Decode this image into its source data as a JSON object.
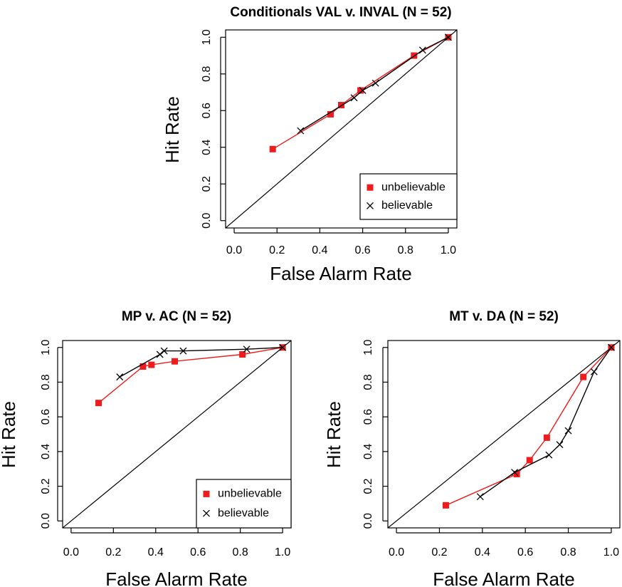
{
  "figure": {
    "background": "#ffffff"
  },
  "colors": {
    "unbelievable": "#ee1c1c",
    "believable": "#000000",
    "diagonal": "#000000",
    "frame": "#000000"
  },
  "chart_data": [
    {
      "type": "line",
      "title": "Conditionals VAL v. INVAL (N = 52)",
      "xlabel": "False Alarm Rate",
      "ylabel": "Hit Rate",
      "xlim": [
        0,
        1
      ],
      "ylim": [
        0,
        1
      ],
      "xticks": [
        "0.0",
        "0.2",
        "0.4",
        "0.6",
        "0.8",
        "1.0"
      ],
      "yticks": [
        "0.0",
        "0.2",
        "0.4",
        "0.6",
        "0.8",
        "1.0"
      ],
      "reference_line": "diagonal",
      "legend": {
        "placement": "bottom-right",
        "entries": [
          "unbelievable",
          "believable"
        ]
      },
      "series": [
        {
          "name": "unbelievable",
          "marker": "square",
          "x": [
            0.18,
            0.45,
            0.5,
            0.59,
            0.84,
            1.0
          ],
          "y": [
            0.39,
            0.58,
            0.63,
            0.71,
            0.9,
            1.0
          ]
        },
        {
          "name": "believable",
          "marker": "x",
          "x": [
            0.31,
            0.56,
            0.6,
            0.66,
            0.88,
            1.0
          ],
          "y": [
            0.49,
            0.67,
            0.71,
            0.75,
            0.93,
            1.0
          ]
        }
      ]
    },
    {
      "type": "line",
      "title": "MP v. AC (N = 52)",
      "xlabel": "False Alarm Rate",
      "ylabel": "Hit Rate",
      "xlim": [
        0,
        1
      ],
      "ylim": [
        0,
        1
      ],
      "xticks": [
        "0.0",
        "0.2",
        "0.4",
        "0.6",
        "0.8",
        "1.0"
      ],
      "yticks": [
        "0.0",
        "0.2",
        "0.4",
        "0.6",
        "0.8",
        "1.0"
      ],
      "reference_line": "diagonal",
      "legend": {
        "placement": "bottom-right",
        "entries": [
          "unbelievable",
          "believable"
        ]
      },
      "series": [
        {
          "name": "unbelievable",
          "marker": "square",
          "x": [
            0.13,
            0.34,
            0.38,
            0.49,
            0.81,
            1.0
          ],
          "y": [
            0.68,
            0.89,
            0.9,
            0.92,
            0.96,
            1.0
          ]
        },
        {
          "name": "believable",
          "marker": "x",
          "x": [
            0.23,
            0.42,
            0.44,
            0.53,
            0.83,
            1.0
          ],
          "y": [
            0.83,
            0.96,
            0.98,
            0.98,
            0.99,
            1.0
          ]
        }
      ]
    },
    {
      "type": "line",
      "title": "MT v. DA (N = 52)",
      "xlabel": "False Alarm Rate",
      "ylabel": "Hit Rate",
      "xlim": [
        0,
        1
      ],
      "ylim": [
        0,
        1
      ],
      "xticks": [
        "0.0",
        "0.2",
        "0.4",
        "0.6",
        "0.8",
        "1.0"
      ],
      "yticks": [
        "0.0",
        "0.2",
        "0.4",
        "0.6",
        "0.8",
        "1.0"
      ],
      "reference_line": "diagonal",
      "series": [
        {
          "name": "unbelievable",
          "marker": "square",
          "x": [
            0.23,
            0.56,
            0.62,
            0.7,
            0.87,
            1.0
          ],
          "y": [
            0.09,
            0.27,
            0.35,
            0.48,
            0.83,
            1.0
          ]
        },
        {
          "name": "believable",
          "marker": "x",
          "x": [
            0.39,
            0.55,
            0.71,
            0.76,
            0.8,
            0.92,
            1.0
          ],
          "y": [
            0.14,
            0.28,
            0.38,
            0.44,
            0.52,
            0.86,
            1.0
          ]
        }
      ]
    }
  ]
}
